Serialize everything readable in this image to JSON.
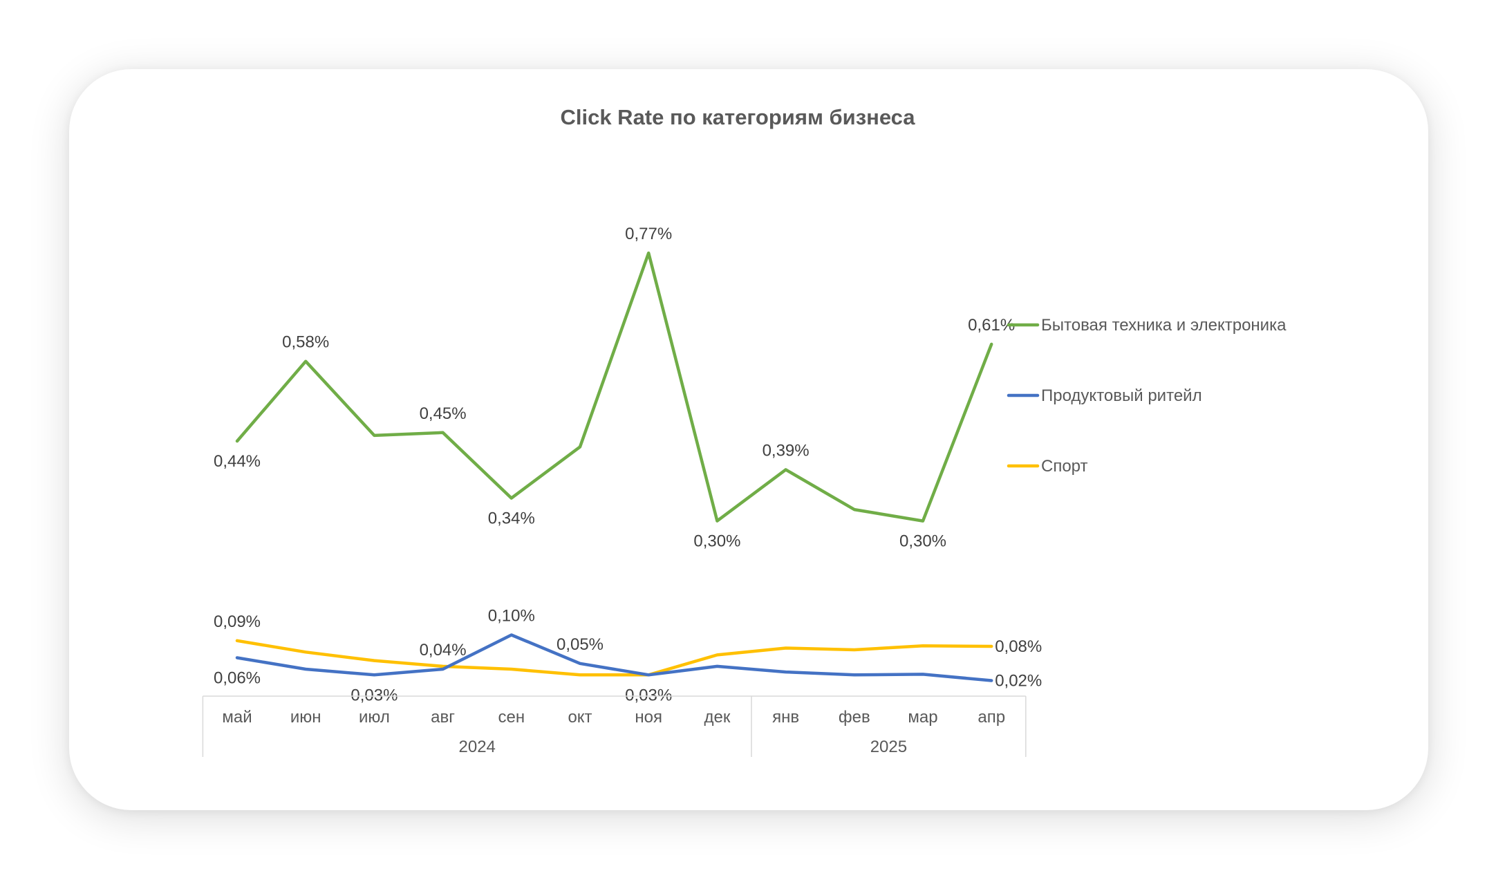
{
  "chart_data": {
    "type": "line",
    "title": "Click Rate по категориям бизнеса",
    "categories": [
      "май",
      "июн",
      "июл",
      "авг",
      "сен",
      "окт",
      "ноя",
      "дек",
      "янв",
      "фев",
      "мар",
      "апр"
    ],
    "category_groups": [
      {
        "label": "2024",
        "start": 0,
        "end": 7
      },
      {
        "label": "2025",
        "start": 8,
        "end": 11
      }
    ],
    "ylim": [
      0,
      0.85
    ],
    "grid": false,
    "legend_position": "right",
    "series": [
      {
        "name": "Бытовая техника и электроника",
        "color": "#70AD47",
        "values": [
          0.44,
          0.58,
          0.45,
          0.455,
          0.34,
          0.43,
          0.77,
          0.3,
          0.39,
          0.32,
          0.3,
          0.61
        ],
        "labels": [
          "0,44%",
          "0,58%",
          "",
          "0,45%",
          "0,34%",
          "",
          "0,77%",
          "0,30%",
          "0,39%",
          "",
          "0,30%",
          "0,61%"
        ],
        "label_positions": [
          "below",
          "above",
          "",
          "above",
          "below",
          "",
          "above",
          "below",
          "above",
          "",
          "below",
          "above"
        ]
      },
      {
        "name": "Продуктовый ритейл",
        "color": "#4472C4",
        "values": [
          0.06,
          0.04,
          0.03,
          0.04,
          0.1,
          0.05,
          0.03,
          0.045,
          0.035,
          0.03,
          0.031,
          0.02
        ],
        "labels": [
          "0,06%",
          "",
          "0,03%",
          "0,04%",
          "0,10%",
          "0,05%",
          "0,03%",
          "",
          "",
          "",
          "",
          "0,02%"
        ],
        "label_positions": [
          "below",
          "",
          "below",
          "above",
          "above",
          "above",
          "below",
          "",
          "",
          "",
          "",
          "right"
        ]
      },
      {
        "name": "Спорт",
        "color": "#FFC000",
        "values": [
          0.09,
          0.07,
          0.055,
          0.045,
          0.04,
          0.03,
          0.03,
          0.065,
          0.077,
          0.074,
          0.081,
          0.08
        ],
        "labels": [
          "0,09%",
          "",
          "",
          "",
          "",
          "",
          "",
          "",
          "",
          "",
          "",
          "0,08%"
        ],
        "label_positions": [
          "above",
          "",
          "",
          "",
          "",
          "",
          "",
          "",
          "",
          "",
          "",
          "right"
        ]
      }
    ]
  }
}
